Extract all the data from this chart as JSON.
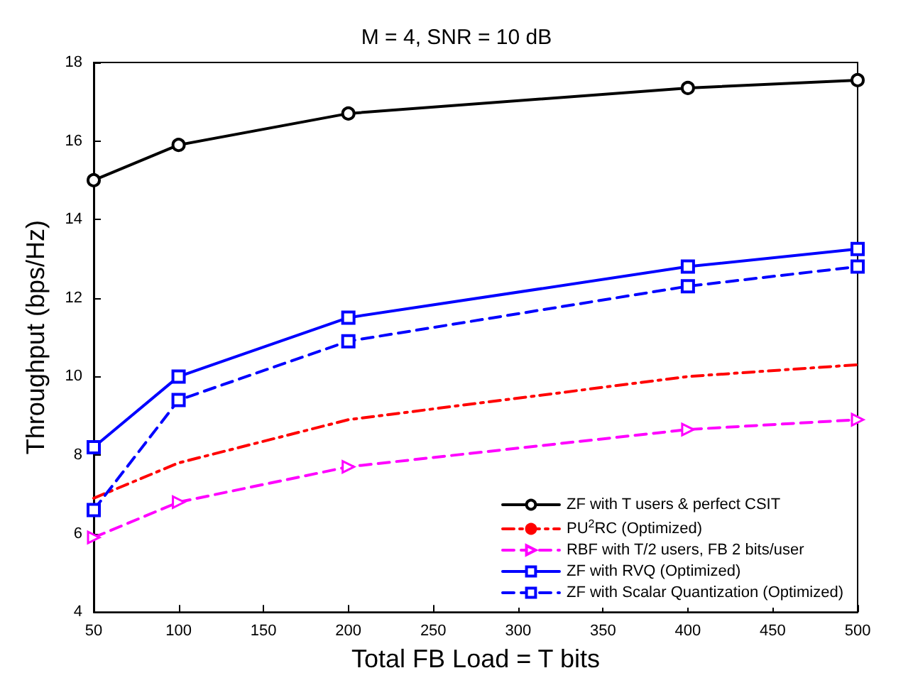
{
  "chart_data": {
    "type": "line",
    "title": "M = 4, SNR = 10 dB",
    "xlabel": "Total FB Load = T bits",
    "ylabel": "Throughput (bps/Hz)",
    "x": [
      50,
      100,
      200,
      400,
      500
    ],
    "series": [
      {
        "name": "ZF with T users & perfect CSIT",
        "color": "#000000",
        "marker": "circle",
        "line_style": "solid",
        "values": [
          15.0,
          15.9,
          16.7,
          17.35,
          17.55
        ]
      },
      {
        "name": "PU$^{2}$RC (Optimized)",
        "color": "#ff0000",
        "marker": "none",
        "line_style": "dashdot",
        "values": [
          6.9,
          7.8,
          8.9,
          10.0,
          10.3
        ]
      },
      {
        "name": "RBF with T/2 users, FB 2 bits/user",
        "color": "#ff00ff",
        "marker": "triangle",
        "line_style": "dashed",
        "values": [
          5.9,
          6.8,
          7.7,
          8.65,
          8.9
        ]
      },
      {
        "name": "ZF with RVQ (Optimized)",
        "color": "#0000ff",
        "marker": "square",
        "line_style": "solid",
        "values": [
          8.2,
          10.0,
          11.5,
          12.8,
          13.25
        ]
      },
      {
        "name": "ZF with Scalar Quantization (Optimized)",
        "color": "#0000ff",
        "marker": "square",
        "line_style": "dashed",
        "values": [
          6.6,
          9.4,
          10.9,
          12.3,
          12.8
        ]
      }
    ],
    "xlim": [
      50,
      500
    ],
    "xticks": [
      50,
      100,
      150,
      200,
      250,
      300,
      350,
      400,
      450,
      500
    ],
    "ylim": [
      4,
      18
    ],
    "yticks": [
      4,
      6,
      8,
      10,
      12,
      14,
      16,
      18
    ],
    "grid": false,
    "legend": "bottom right"
  }
}
